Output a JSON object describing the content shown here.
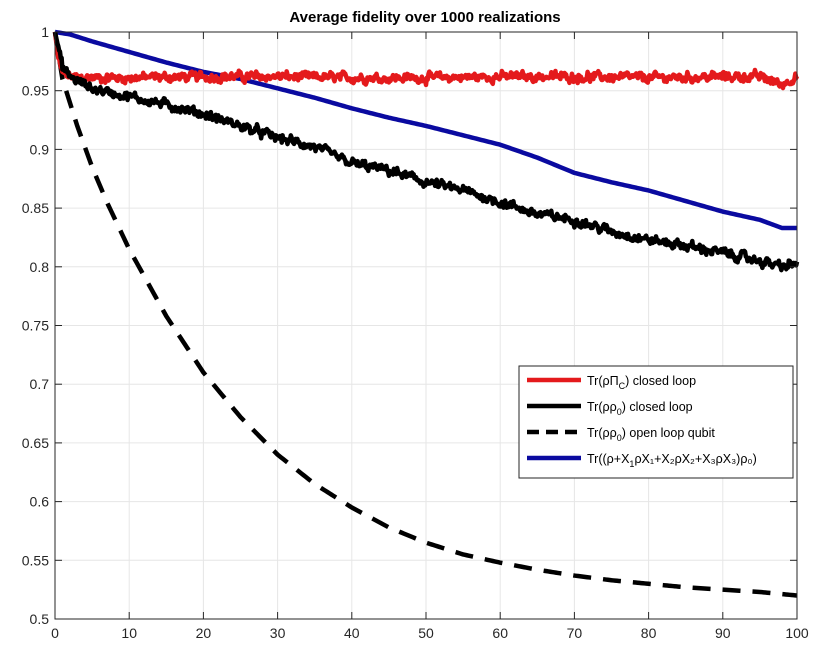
{
  "chart_data": {
    "type": "line",
    "title": "Average fidelity  over 1000 realizations",
    "xlabel": "",
    "ylabel": "",
    "xlim": [
      0,
      100
    ],
    "ylim": [
      0.5,
      1
    ],
    "xticks": [
      0,
      10,
      20,
      30,
      40,
      50,
      60,
      70,
      80,
      90,
      100
    ],
    "yticks": [
      0.5,
      0.55,
      0.6,
      0.65,
      0.7,
      0.75,
      0.8,
      0.85,
      0.9,
      0.95,
      1
    ],
    "xtick_labels": [
      "0",
      "10",
      "20",
      "30",
      "40",
      "50",
      "60",
      "70",
      "80",
      "90",
      "100"
    ],
    "ytick_labels": [
      "0.5",
      "0.55",
      "0.6",
      "0.65",
      "0.7",
      "0.75",
      "0.8",
      "0.85",
      "0.9",
      "0.95",
      "1"
    ],
    "grid": true,
    "legend_position": "right",
    "series": [
      {
        "name": "Tr(ρΠC) closed loop",
        "color": "#e41a1c",
        "style": "solid",
        "noisy": true,
        "x": [
          0,
          0.5,
          1,
          2,
          3,
          5,
          10,
          20,
          30,
          40,
          50,
          60,
          70,
          80,
          90,
          95,
          98,
          100
        ],
        "y": [
          1.0,
          0.975,
          0.965,
          0.962,
          0.961,
          0.961,
          0.961,
          0.962,
          0.962,
          0.961,
          0.961,
          0.962,
          0.962,
          0.961,
          0.962,
          0.962,
          0.955,
          0.963
        ]
      },
      {
        "name": "Tr(ρρ0) closed loop",
        "color": "#000000",
        "style": "solid",
        "noisy": true,
        "x": [
          0,
          0.5,
          1,
          2,
          5,
          10,
          15,
          20,
          25,
          30,
          35,
          40,
          45,
          50,
          55,
          60,
          65,
          70,
          75,
          80,
          85,
          90,
          95,
          98,
          100
        ],
        "y": [
          1.0,
          0.985,
          0.97,
          0.962,
          0.952,
          0.945,
          0.938,
          0.93,
          0.92,
          0.91,
          0.902,
          0.888,
          0.882,
          0.872,
          0.865,
          0.855,
          0.845,
          0.84,
          0.83,
          0.823,
          0.818,
          0.812,
          0.805,
          0.8,
          0.803
        ]
      },
      {
        "name": "Tr(ρρ0) open loop qubit",
        "color": "#000000",
        "style": "dashed",
        "noisy": false,
        "x": [
          0,
          1,
          2,
          3,
          5,
          7,
          10,
          15,
          20,
          25,
          30,
          35,
          40,
          45,
          50,
          55,
          60,
          65,
          70,
          75,
          80,
          85,
          90,
          95,
          100
        ],
        "y": [
          1.0,
          0.96,
          0.94,
          0.92,
          0.885,
          0.855,
          0.815,
          0.758,
          0.71,
          0.672,
          0.64,
          0.615,
          0.595,
          0.578,
          0.565,
          0.555,
          0.548,
          0.542,
          0.537,
          0.533,
          0.53,
          0.527,
          0.525,
          0.523,
          0.52
        ]
      },
      {
        "name": "Tr((ρ+X1ρX1+X2ρX2+X3ρX3)ρ0)",
        "color": "#0a0aa0",
        "style": "solid",
        "noisy": false,
        "x": [
          0,
          2,
          5,
          10,
          15,
          20,
          25,
          30,
          35,
          40,
          45,
          50,
          55,
          60,
          65,
          70,
          75,
          80,
          85,
          90,
          95,
          98,
          100
        ],
        "y": [
          1.0,
          0.998,
          0.992,
          0.983,
          0.974,
          0.966,
          0.96,
          0.952,
          0.944,
          0.935,
          0.927,
          0.92,
          0.912,
          0.904,
          0.893,
          0.88,
          0.872,
          0.865,
          0.856,
          0.847,
          0.84,
          0.833,
          0.833
        ]
      }
    ],
    "legend": [
      {
        "text": "Tr(ρΠ",
        "sub": "C",
        "tail": ") closed loop"
      },
      {
        "text": "Tr(ρρ",
        "sub": "0",
        "tail": ") closed loop"
      },
      {
        "text": "Tr(ρρ",
        "sub": "0",
        "tail": ") open loop qubit"
      },
      {
        "text": "Tr((ρ+X",
        "sub": "1",
        "tail": "ρX₁+X₂ρX₂+X₃ρX₃)ρ₀)"
      }
    ]
  }
}
